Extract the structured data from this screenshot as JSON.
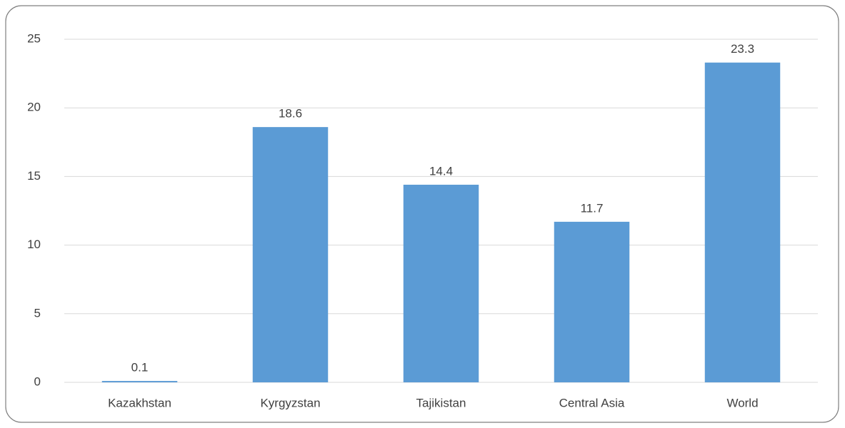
{
  "chart_data": {
    "type": "bar",
    "categories": [
      "Kazakhstan",
      "Kyrgyzstan",
      "Tajikistan",
      "Central Asia",
      "World"
    ],
    "values": [
      0.1,
      18.6,
      14.4,
      11.7,
      23.3
    ],
    "color": "#5b9bd5",
    "ylim": [
      0,
      25
    ],
    "yticks": [
      0,
      5,
      10,
      15,
      20,
      25
    ],
    "grid": true
  }
}
